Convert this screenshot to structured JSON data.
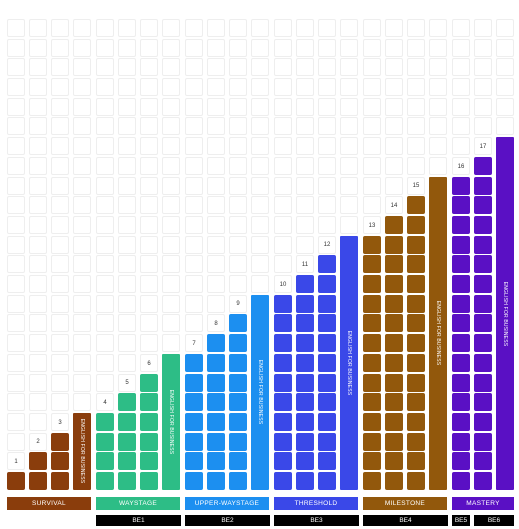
{
  "colors": {
    "survival": "#8a3d0c",
    "waystage": "#2dbd86",
    "upper_waystage": "#1c8ff0",
    "threshold": "#3a48e8",
    "milestone": "#92580c",
    "mastery": "#5a10c4"
  },
  "chart_data": {
    "type": "bar",
    "groups": [
      {
        "band": "SURVIVAL",
        "levels": [
          "1",
          "2",
          "3"
        ],
        "values": [
          1,
          2,
          3
        ],
        "book": "ENGLISH FOR BUSINESS",
        "book_height": 4
      },
      {
        "band": "WAYSTAGE",
        "levels": [
          "4",
          "5",
          "6"
        ],
        "values": [
          4,
          5,
          6
        ],
        "book": "ENGLISH FOR BUSINESS",
        "book_height": 7
      },
      {
        "band": "UPPER-WAYSTAGE",
        "levels": [
          "7",
          "8",
          "9"
        ],
        "values": [
          7,
          8,
          9
        ],
        "book": "ENGLISH FOR BUSINESS",
        "book_height": 10
      },
      {
        "band": "THRESHOLD",
        "levels": [
          "10",
          "11",
          "12"
        ],
        "values": [
          10,
          11,
          12
        ],
        "book": "ENGLISH FOR BUSINESS",
        "book_height": 13
      },
      {
        "band": "MILESTONE",
        "levels": [
          "13",
          "14",
          "15"
        ],
        "values": [
          13,
          14,
          15
        ],
        "book": "ENGLISH FOR BUSINESS",
        "book_height": 16
      },
      {
        "band": "MASTERY",
        "levels": [
          "16",
          "17"
        ],
        "values": [
          16,
          17
        ],
        "book": "ENGLISH FOR BUSINESS",
        "book_height": 18
      }
    ],
    "bottom_labels": [
      "BE1",
      "BE2",
      "BE3",
      "BE4",
      "BE5",
      "BE6"
    ],
    "ymax": 24
  }
}
